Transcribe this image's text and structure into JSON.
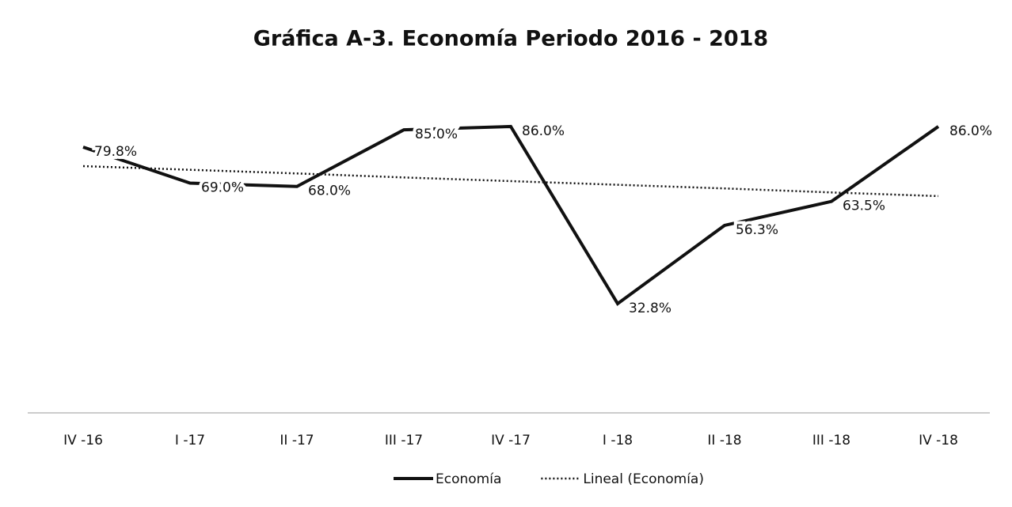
{
  "chart_data": {
    "type": "line",
    "title": "Gráfica A-3. Economía Periodo 2016 - 2018",
    "categories": [
      "IV -16",
      "I -17",
      "II -17",
      "III -17",
      "IV -17",
      "I -18",
      "II -18",
      "III -18",
      "IV -18"
    ],
    "series": [
      {
        "name": "Economía",
        "color": "#111111",
        "style": "solid",
        "values": [
          79.8,
          69.0,
          68.0,
          85.0,
          86.0,
          32.8,
          56.3,
          63.5,
          86.0
        ],
        "value_labels": [
          "79.8%",
          "69.0%",
          "68.0%",
          "85.0%",
          "86.0%",
          "32.8%",
          "56.3%",
          "63.5%",
          "86.0%"
        ]
      },
      {
        "name": "Lineal (Economía)",
        "color": "#111111",
        "style": "dotted",
        "values": [
          74.1,
          73.0,
          71.9,
          70.7,
          69.6,
          68.5,
          67.4,
          66.2,
          65.1
        ]
      }
    ],
    "ylim": [
      0,
      100
    ],
    "legend": "bottom"
  }
}
